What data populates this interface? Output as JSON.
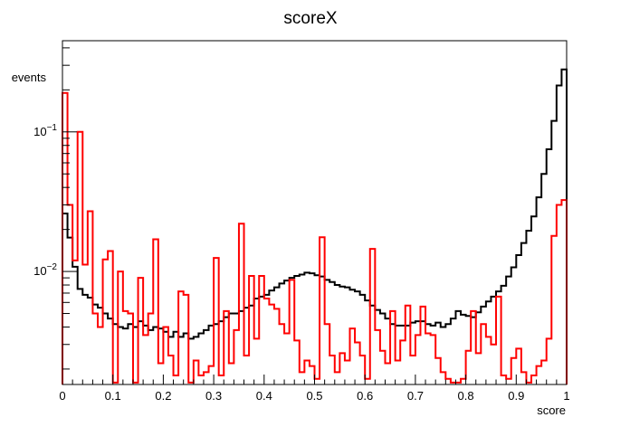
{
  "chart_data": {
    "type": "line",
    "style": "step-histogram",
    "title": "scoreX",
    "xlabel": "score",
    "ylabel": "events",
    "xlim": [
      0,
      1
    ],
    "ylim": [
      0.00155,
      0.45
    ],
    "yscale": "log",
    "grid": false,
    "x_ticks": [
      "0",
      "0.1",
      "0.2",
      "0.3",
      "0.4",
      "0.5",
      "0.6",
      "0.7",
      "0.8",
      "0.9",
      "1"
    ],
    "y_ticks": [
      {
        "base": "10",
        "exp": "−1",
        "value": 0.1
      },
      {
        "base": "10",
        "exp": "−2",
        "value": 0.01
      }
    ],
    "bin_width": 0.01,
    "series": [
      {
        "color": "#000000",
        "values": [
          0.026,
          0.0175,
          0.0108,
          0.0075,
          0.0068,
          0.0065,
          0.0058,
          0.0055,
          0.005,
          0.0046,
          0.0042,
          0.004,
          0.0039,
          0.0042,
          0.004,
          0.0044,
          0.0041,
          0.0038,
          0.004,
          0.0039,
          0.0037,
          0.0034,
          0.0037,
          0.0034,
          0.0036,
          0.0033,
          0.0034,
          0.0036,
          0.0038,
          0.0041,
          0.0042,
          0.0044,
          0.0047,
          0.005,
          0.005,
          0.0052,
          0.0055,
          0.0057,
          0.0064,
          0.0066,
          0.0068,
          0.0073,
          0.0077,
          0.0082,
          0.0086,
          0.009,
          0.0093,
          0.0095,
          0.0098,
          0.0097,
          0.0094,
          0.0092,
          0.0087,
          0.0084,
          0.008,
          0.0078,
          0.0077,
          0.0074,
          0.0072,
          0.0068,
          0.0062,
          0.0057,
          0.0053,
          0.005,
          0.0046,
          0.0042,
          0.0041,
          0.0041,
          0.0041,
          0.0043,
          0.0044,
          0.0044,
          0.0042,
          0.0041,
          0.0043,
          0.004,
          0.0042,
          0.0046,
          0.0052,
          0.0049,
          0.0048,
          0.0047,
          0.0051,
          0.0056,
          0.0061,
          0.0066,
          0.0072,
          0.0079,
          0.0092,
          0.0107,
          0.0131,
          0.016,
          0.0196,
          0.0248,
          0.034,
          0.05,
          0.075,
          0.12,
          0.215,
          0.28
        ]
      },
      {
        "color": "#ff0000",
        "values": [
          0.19,
          0.03,
          0.012,
          0.1,
          0.0112,
          0.027,
          0.005,
          0.004,
          0.0122,
          0.014,
          0.0016,
          0.01,
          0.0052,
          0.005,
          0.0016,
          0.009,
          0.0035,
          0.005,
          0.017,
          0.0022,
          0.004,
          0.0025,
          0.0018,
          0.0072,
          0.0068,
          0.0016,
          0.0023,
          0.0018,
          0.0019,
          0.0021,
          0.0125,
          0.0018,
          0.0052,
          0.0022,
          0.0038,
          0.022,
          0.0025,
          0.0093,
          0.0033,
          0.0093,
          0.0064,
          0.0058,
          0.0054,
          0.0042,
          0.0036,
          0.0087,
          0.0032,
          0.0019,
          0.0023,
          0.0021,
          0.0017,
          0.0176,
          0.0042,
          0.0025,
          0.0019,
          0.0026,
          0.0023,
          0.0039,
          0.0031,
          0.0025,
          0.0017,
          0.0145,
          0.0038,
          0.0027,
          0.0022,
          0.0052,
          0.0023,
          0.0032,
          0.0057,
          0.0025,
          0.0035,
          0.0056,
          0.0036,
          0.0035,
          0.0024,
          0.0019,
          0.0017,
          0.0016,
          0.0016,
          0.0017,
          0.0027,
          0.0052,
          0.0026,
          0.0042,
          0.0034,
          0.003,
          0.0066,
          0.0018,
          0.0017,
          0.0024,
          0.0028,
          0.0019,
          0.0016,
          0.0018,
          0.0021,
          0.0023,
          0.0033,
          0.018,
          0.03,
          0.0325
        ]
      }
    ]
  }
}
